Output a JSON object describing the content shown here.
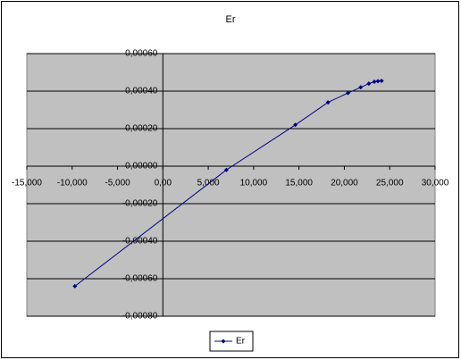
{
  "chart_data": {
    "type": "scatter",
    "title": "Er",
    "x": [
      -9700,
      7000,
      14600,
      18200,
      20400,
      21800,
      22700,
      23300,
      23700,
      24100
    ],
    "series": [
      {
        "name": "Er",
        "color": "#000080",
        "values": [
          -0.00064,
          -2e-05,
          0.00022,
          0.00034,
          0.00039,
          0.00042,
          0.00044,
          0.00045,
          0.000453,
          0.000455
        ]
      }
    ],
    "xlim": [
      -15000,
      30000
    ],
    "xticks": [
      {
        "value": -15000,
        "label": "-15,000"
      },
      {
        "value": -10000,
        "label": "-10,000"
      },
      {
        "value": -5000,
        "label": "-5,000"
      },
      {
        "value": 0,
        "label": "0,00"
      },
      {
        "value": 5000,
        "label": "5,000"
      },
      {
        "value": 10000,
        "label": "10,000"
      },
      {
        "value": 15000,
        "label": "15,000"
      },
      {
        "value": 20000,
        "label": "20,000"
      },
      {
        "value": 25000,
        "label": "25,000"
      },
      {
        "value": 30000,
        "label": "30,000"
      }
    ],
    "ylim": [
      -0.0008,
      0.0006
    ],
    "yticks": [
      {
        "value": -0.0008,
        "label": "-0,00080"
      },
      {
        "value": -0.0006,
        "label": "-0,00060"
      },
      {
        "value": -0.0004,
        "label": "-0,00040"
      },
      {
        "value": -0.0002,
        "label": "-0,00020"
      },
      {
        "value": 0,
        "label": "0,00000"
      },
      {
        "value": 0.0002,
        "label": "0,00020"
      },
      {
        "value": 0.0004,
        "label": "0,00040"
      },
      {
        "value": 0.0006,
        "label": "0,00060"
      }
    ],
    "grid": true,
    "legend": "bottom"
  }
}
